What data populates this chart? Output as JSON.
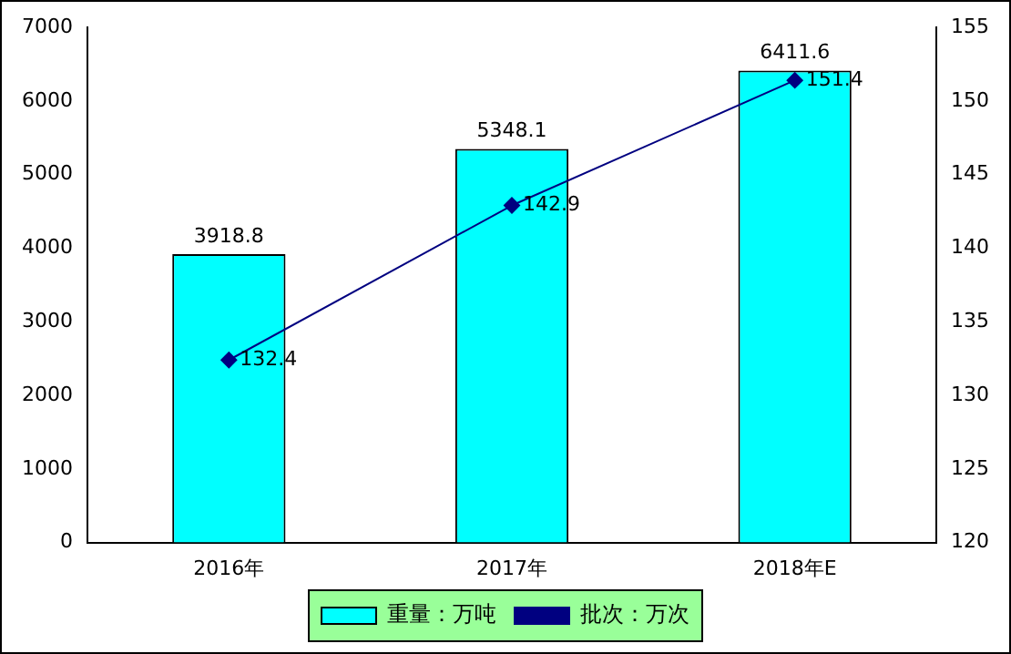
{
  "chart_data": {
    "type": "bar",
    "categories": [
      "2016年",
      "2017年",
      "2018年E"
    ],
    "series": [
      {
        "name": "重量：万吨",
        "color": "#00ffff",
        "values": [
          3918.8,
          5348.1,
          6411.6
        ]
      },
      {
        "name": "批次：万次",
        "type": "line",
        "axis": "y2",
        "color": "#000080",
        "values": [
          132.4,
          142.9,
          151.4
        ]
      }
    ],
    "ylim": [
      0,
      7000
    ],
    "yticks": [
      0,
      1000,
      2000,
      3000,
      4000,
      5000,
      6000,
      7000
    ],
    "y2lim": [
      120,
      155
    ],
    "y2ticks": [
      120,
      125,
      130,
      135,
      140,
      145,
      150,
      155
    ],
    "data_labels": true,
    "legend": "bottom",
    "marker": "diamond",
    "grid": false
  }
}
